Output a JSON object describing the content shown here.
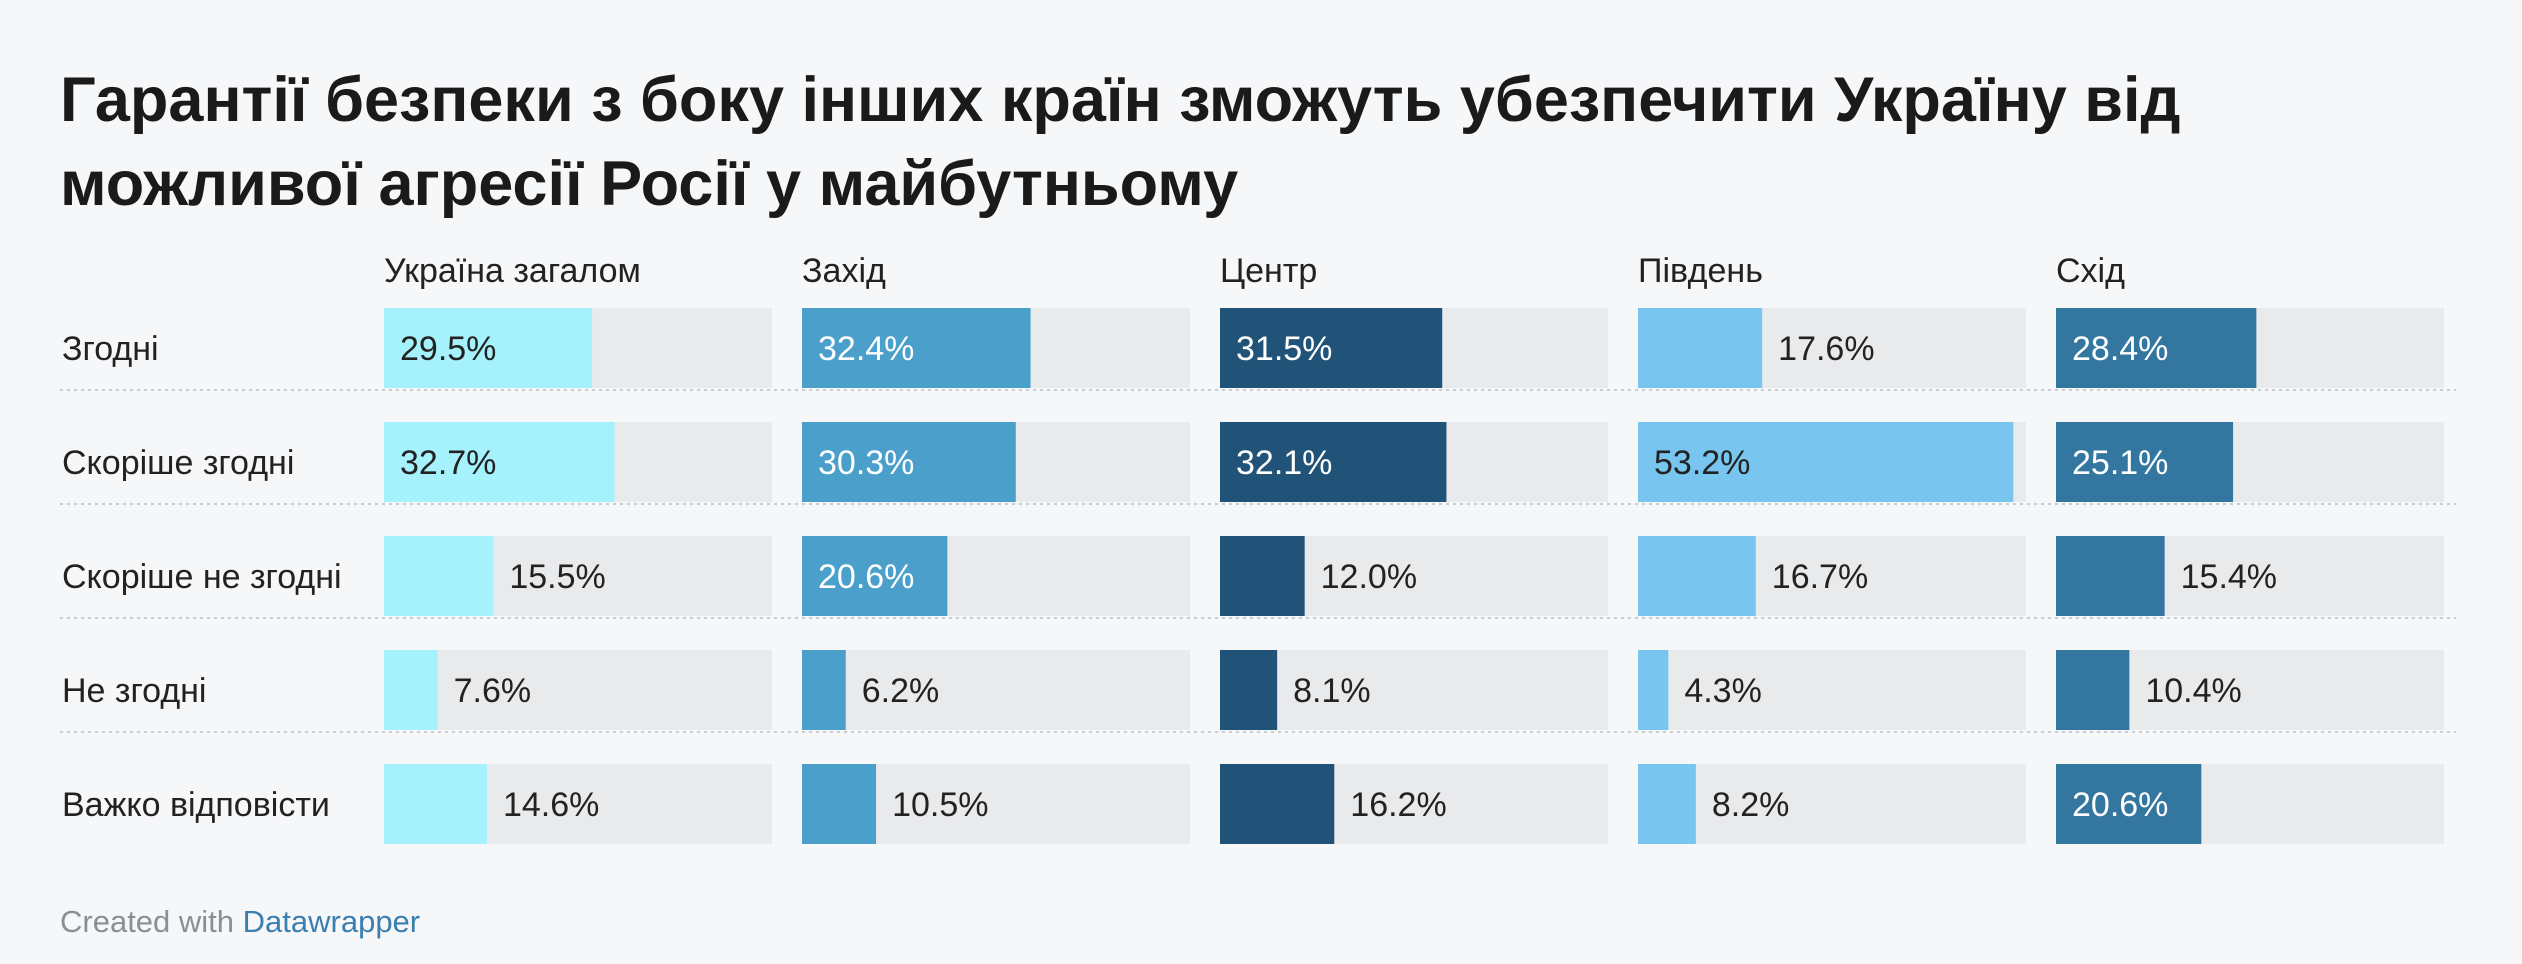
{
  "title": "Гарантії безпеки з боку інших країн зможуть убезпечити Україну від можливої агресії Росії у майбутньому",
  "footer": {
    "prefix": "Created with ",
    "link": "Datawrapper"
  },
  "chart_data": {
    "type": "bar",
    "layout": "small-multiples",
    "categories": [
      "Згодні",
      "Скоріше згодні",
      "Скоріше не згодні",
      "Не згодні",
      "Важко відповісти"
    ],
    "xlim": [
      0,
      55
    ],
    "series": [
      {
        "name": "Україна загалом",
        "color": "#a6f2fc",
        "values": [
          29.5,
          32.7,
          15.5,
          7.6,
          14.6
        ]
      },
      {
        "name": "Захід",
        "color": "#4a9fcb",
        "values": [
          32.4,
          30.3,
          20.6,
          6.2,
          10.5
        ]
      },
      {
        "name": "Центр",
        "color": "#215378",
        "values": [
          31.5,
          32.1,
          12.0,
          8.1,
          16.2
        ]
      },
      {
        "name": "Південь",
        "color": "#78c5f0",
        "values": [
          17.6,
          53.2,
          16.7,
          4.3,
          8.2
        ]
      },
      {
        "name": "Схід",
        "color": "#33769f",
        "values": [
          28.4,
          25.1,
          15.4,
          10.4,
          20.6
        ]
      }
    ],
    "labels": [
      [
        "29.5%",
        "32.7%",
        "15.5%",
        "7.6%",
        "14.6%"
      ],
      [
        "32.4%",
        "30.3%",
        "20.6%",
        "6.2%",
        "10.5%"
      ],
      [
        "31.5%",
        "32.1%",
        "12.0%",
        "8.1%",
        "16.2%"
      ],
      [
        "17.6%",
        "53.2%",
        "16.7%",
        "4.3%",
        "8.2%"
      ],
      [
        "28.4%",
        "25.1%",
        "15.4%",
        "10.4%",
        "20.6%"
      ]
    ],
    "background_bar_color": "#e9eaec",
    "grid": false
  }
}
